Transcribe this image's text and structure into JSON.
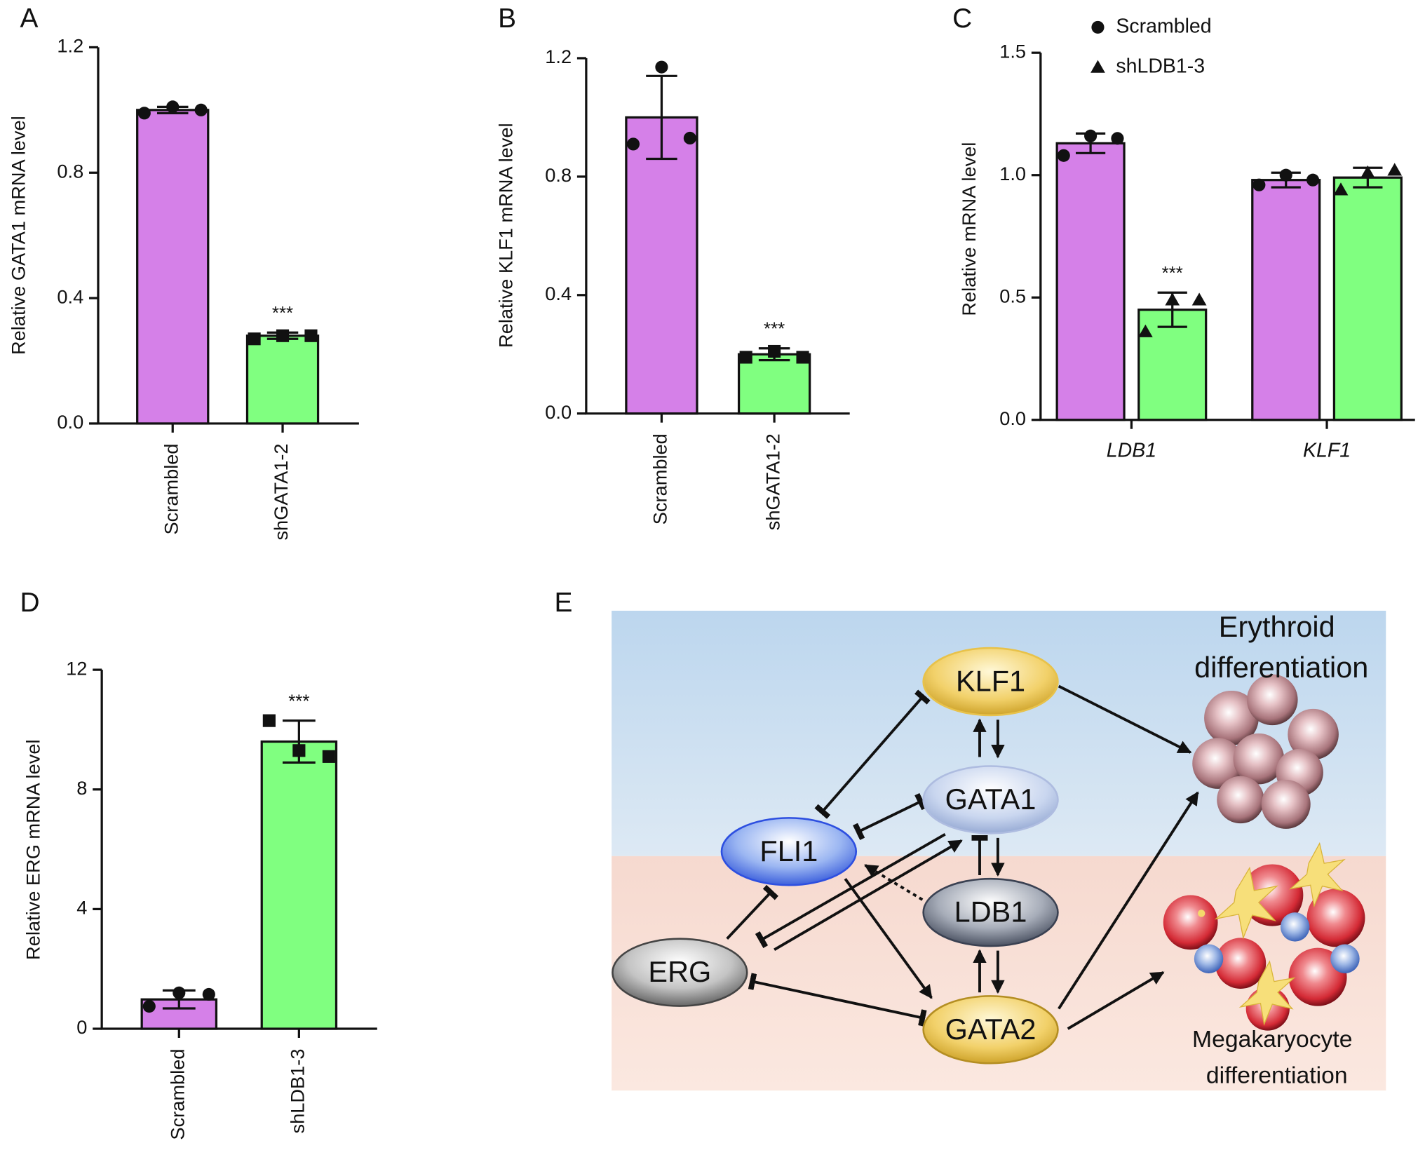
{
  "chart_data": [
    {
      "type": "bar",
      "panel": "A",
      "y_label": "Relative GATA1 mRNA level",
      "categories": [
        "Scrambled",
        "shGATA1-2"
      ],
      "values": [
        1.0,
        0.28
      ],
      "errors": [
        0.01,
        0.01
      ],
      "points": [
        [
          0.99,
          1.01,
          1.0
        ],
        [
          0.27,
          0.28,
          0.28
        ]
      ],
      "colors": [
        "#d580e8",
        "#80ff80"
      ],
      "markers": [
        "circle",
        "square"
      ],
      "ylim": [
        0,
        1.2
      ],
      "yticks": [
        {
          "value": 0,
          "label": "0.0"
        },
        0.4,
        0.8,
        1.2
      ],
      "annotations": [
        {
          "text": "***",
          "category": 1
        }
      ]
    },
    {
      "type": "bar",
      "panel": "B",
      "y_label": "Relative KLF1 mRNA level",
      "categories": [
        "Scrambled",
        "shGATA1-2"
      ],
      "values": [
        1.0,
        0.2
      ],
      "errors": [
        0.14,
        0.02
      ],
      "points": [
        [
          0.91,
          1.17,
          0.93
        ],
        [
          0.19,
          0.21,
          0.19
        ]
      ],
      "colors": [
        "#d580e8",
        "#80ff80"
      ],
      "markers": [
        "circle",
        "square"
      ],
      "ylim": [
        0,
        1.2
      ],
      "yticks": [
        {
          "value": 0,
          "label": "0.0"
        },
        0.4,
        0.8,
        1.2
      ],
      "annotations": [
        {
          "text": "***",
          "category": 1
        }
      ]
    },
    {
      "type": "grouped-bar",
      "panel": "C",
      "y_label": "Relative mRNA level",
      "categories": [
        "LDB1",
        "KLF1"
      ],
      "series": [
        {
          "name": "Scrambled",
          "color": "#d580e8",
          "marker": "circle",
          "values": [
            1.13,
            0.98
          ],
          "errors": [
            0.04,
            0.03
          ],
          "points": [
            [
              1.08,
              1.16,
              1.15
            ],
            [
              0.96,
              1.0,
              0.98
            ]
          ]
        },
        {
          "name": "shLDB1-3",
          "color": "#80ff80",
          "marker": "triangle",
          "values": [
            0.45,
            0.99
          ],
          "errors": [
            0.07,
            0.04
          ],
          "points": [
            [
              0.36,
              0.49,
              0.49
            ],
            [
              0.94,
              1.01,
              1.02
            ]
          ]
        }
      ],
      "ylim": [
        0,
        1.5
      ],
      "yticks": [
        {
          "value": 0,
          "label": "0.0"
        },
        0.5,
        {
          "value": 1,
          "label": "1.0"
        },
        1.5
      ],
      "annotations": [
        {
          "text": "***",
          "category": 0,
          "series": 1
        }
      ]
    },
    {
      "type": "bar",
      "panel": "D",
      "y_label": "Relative ERG mRNA level",
      "categories": [
        "Scrambled",
        "shLDB1-3"
      ],
      "values": [
        0.98,
        9.6
      ],
      "errors": [
        0.3,
        0.7
      ],
      "points": [
        [
          0.75,
          1.2,
          1.15
        ],
        [
          10.3,
          9.3,
          9.1
        ]
      ],
      "colors": [
        "#d580e8",
        "#80ff80"
      ],
      "markers": [
        "circle",
        "square"
      ],
      "ylim": [
        0,
        12
      ],
      "yticks": [
        0,
        4,
        8,
        12
      ],
      "annotations": [
        {
          "text": "***",
          "category": 1
        }
      ]
    }
  ],
  "diagram": {
    "panel": "E",
    "nodes": [
      {
        "label": "KLF1"
      },
      {
        "label": "GATA1"
      },
      {
        "label": "FLI1"
      },
      {
        "label": "LDB1"
      },
      {
        "label": "ERG"
      },
      {
        "label": "GATA2"
      }
    ],
    "erythroid": [
      "Erythroid",
      "differentiation"
    ],
    "megakaryocyte": [
      "Megakaryocyte",
      "differentiation"
    ]
  }
}
